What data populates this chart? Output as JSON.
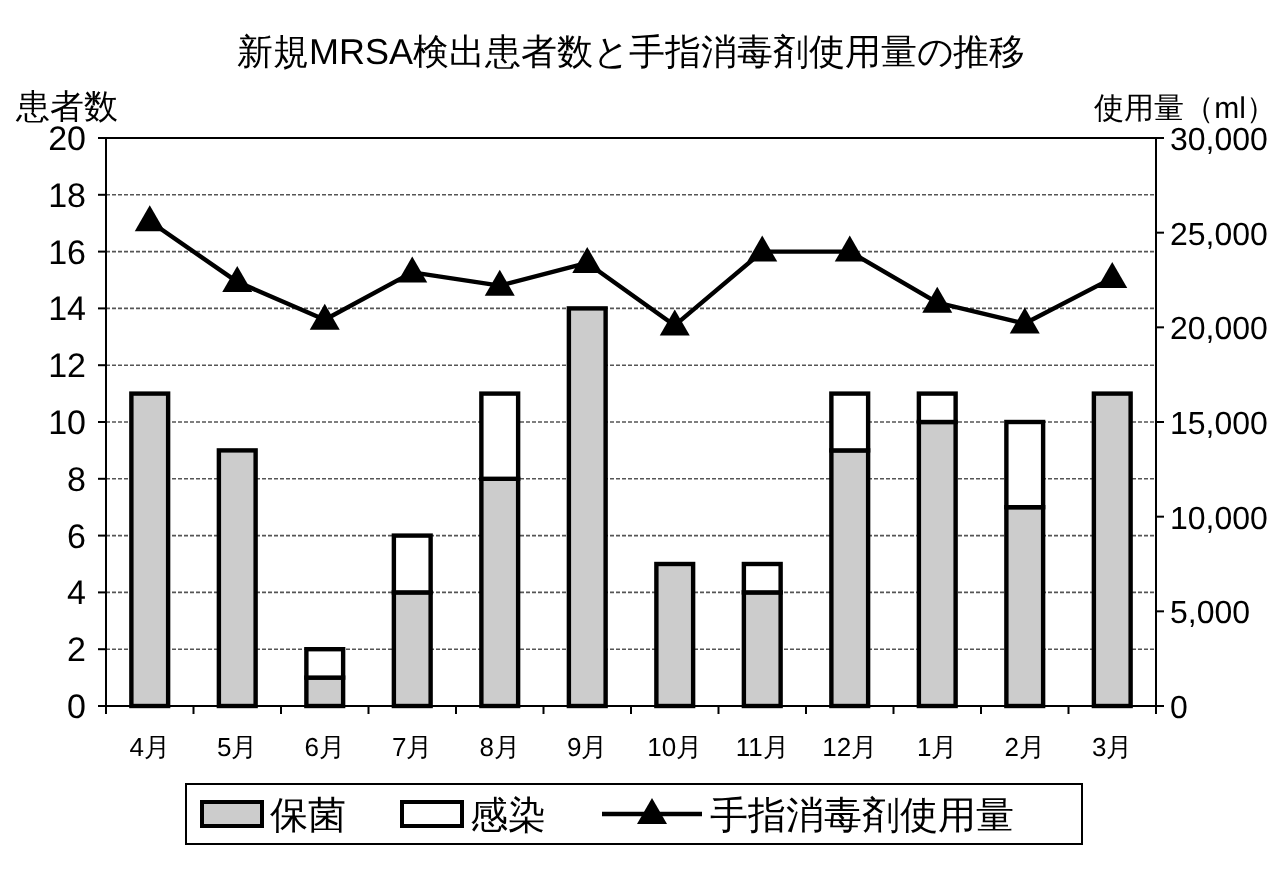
{
  "chart_data": {
    "type": "bar",
    "title": "新規MRSA検出患者数と手指消毒剤使用量の推移",
    "ylabel": "患者数",
    "y2label": "使用量（ml）",
    "categories": [
      "4月",
      "5月",
      "6月",
      "7月",
      "8月",
      "9月",
      "10月",
      "11月",
      "12月",
      "1月",
      "2月",
      "3月"
    ],
    "stacked": true,
    "series": [
      {
        "name": "保菌",
        "color": "#cccccc",
        "values": [
          11,
          9,
          1,
          4,
          8,
          14,
          5,
          4,
          9,
          10,
          7,
          11
        ]
      },
      {
        "name": "感染",
        "color": "#ffffff",
        "values": [
          0,
          0,
          1,
          2,
          3,
          0,
          0,
          1,
          2,
          1,
          3,
          0
        ]
      },
      {
        "name": "手指消毒剤使用量",
        "type": "line",
        "axis": "y2",
        "color": "#000000",
        "marker": "triangle",
        "values": [
          25600,
          22400,
          20400,
          22900,
          22200,
          23400,
          20100,
          24000,
          24000,
          21300,
          20200,
          22600
        ]
      }
    ],
    "ylim": [
      0,
      20
    ],
    "yticks": [
      0,
      2,
      4,
      6,
      8,
      10,
      12,
      14,
      16,
      18,
      20
    ],
    "y2lim": [
      0,
      30000
    ],
    "y2ticks": [
      0,
      {
        "value": 5000,
        "label": "5,000"
      },
      {
        "value": 10000,
        "label": "10,000"
      },
      {
        "value": 15000,
        "label": "15,000"
      },
      {
        "value": 20000,
        "label": "20,000"
      },
      {
        "value": 25000,
        "label": "25,000"
      },
      {
        "value": 30000,
        "label": "30,000"
      }
    ],
    "grid": "y",
    "legend": "bottom"
  }
}
